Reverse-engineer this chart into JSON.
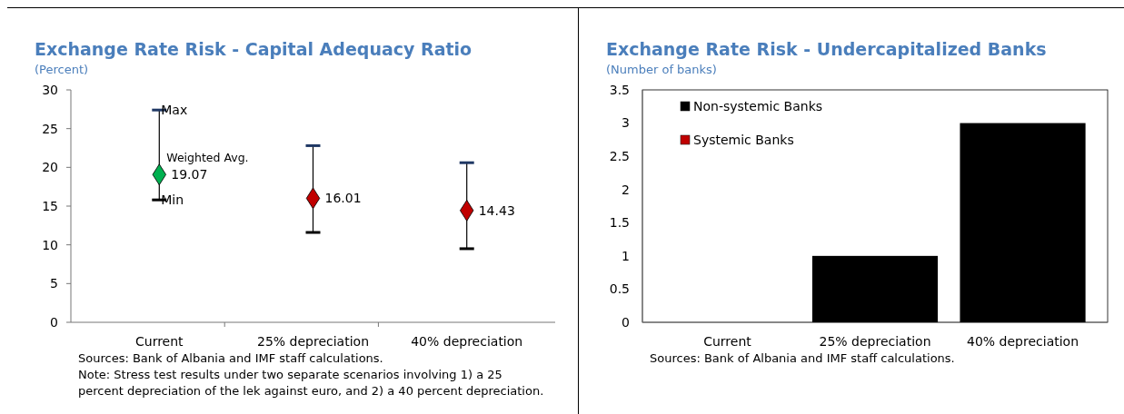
{
  "chart_data": [
    {
      "type": "scatter",
      "title": "Exchange Rate Risk - Capital Adequacy Ratio",
      "subtitle": "(Percent)",
      "categories": [
        "Current",
        "25% depreciation",
        "40% depreciation"
      ],
      "series": [
        {
          "type": "scatter",
          "values": [
            19.07,
            16.01,
            14.43
          ],
          "colors": [
            "#00b050",
            "#c00000",
            "#c00000"
          ],
          "errors": [
            [
              15.8,
              27.4
            ],
            [
              11.6,
              22.8
            ],
            [
              9.5,
              20.6
            ]
          ]
        }
      ],
      "marker": "diamond",
      "data_labels": true,
      "ylim": [
        0,
        30
      ],
      "yticks": [
        0,
        5,
        10,
        15,
        20,
        25,
        30
      ],
      "grid": false,
      "legend": false,
      "annotations": [
        {
          "text": "Max",
          "x": "Current",
          "y": 27.4
        },
        {
          "text": "Min",
          "x": "Current",
          "y": 15.8
        },
        {
          "text": "Weighted Avg.",
          "x": "Current",
          "y": 21.2
        },
        "Sources: Bank of Albania and IMF staff calculations.",
        "Note: Stress test results under two separate scenarios involving 1) a 25 percent depreciation of the lek against euro, and 2) a 40 percent depreciation."
      ]
    },
    {
      "type": "bar",
      "title": "Exchange Rate Risk - Undercapitalized Banks",
      "subtitle": "(Number of banks)",
      "categories": [
        "Current",
        "25% depreciation",
        "40% depreciation"
      ],
      "series": [
        {
          "name": "Non-systemic Banks",
          "color": "#000000",
          "values": [
            0,
            1,
            3
          ]
        },
        {
          "name": "Systemic Banks",
          "color": "#c00000",
          "values": [
            0,
            0,
            0
          ]
        }
      ],
      "stacked": true,
      "ylim": [
        0,
        3.5
      ],
      "yticks": [
        0,
        0.5,
        1,
        1.5,
        2,
        2.5,
        3,
        3.5
      ],
      "grid": false,
      "legend": "top left",
      "annotations": [
        "Sources: Bank of Albania and IMF staff calculations."
      ]
    }
  ]
}
